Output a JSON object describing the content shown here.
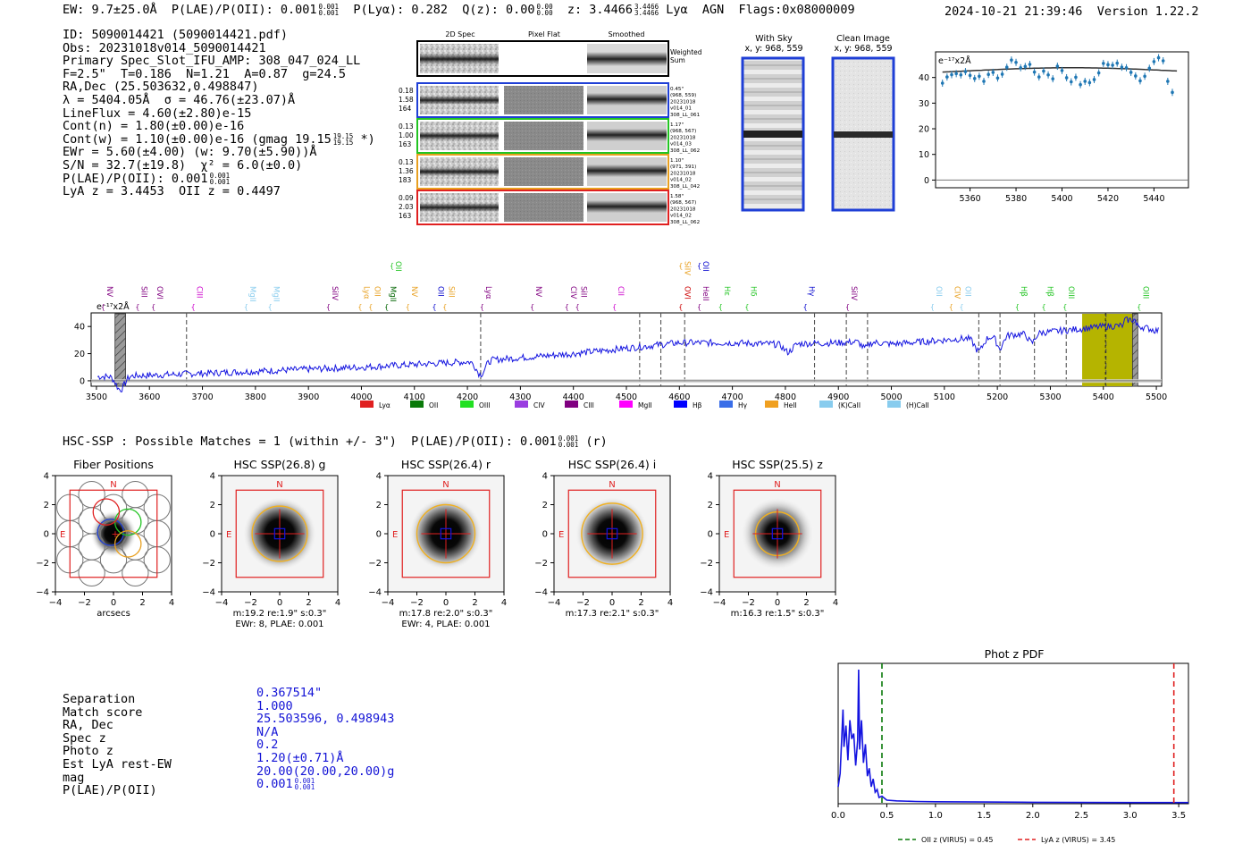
{
  "header": {
    "left": "EW: 9.7±25.0Å  P(LAE)/P(OII): 0.001",
    "plae_frac": [
      "0.001",
      "0.001"
    ],
    "mid": "P(Lyα): 0.282  Q(z): 0.00",
    "qz_frac": [
      "0.00",
      "0.00"
    ],
    "z": "z: 3.4466",
    "z_frac": [
      "3.4466",
      "3.4466"
    ],
    "tail": "Lyα  AGN  Flags:0x08000009",
    "timestamp": "2024-10-21 21:39:46",
    "version": "Version 1.22.2"
  },
  "info": {
    "lines": [
      "ID: 5090014421 (5090014421.pdf)",
      "Obs: 20231018v014_5090014421",
      "Primary Spec_Slot_IFU_AMP: 308_047_024_LL",
      "F=2.5\"  T=0.186  N=1.21  A=0.87  g=24.5",
      "RA,Dec (25.503632,0.498847)",
      "λ = 5404.05Å  σ = 46.76(±23.07)Å",
      "LineFlux = 4.60(±2.80)e-15",
      "Cont(n) = 1.80(±0.00)e-16"
    ],
    "contw": "Cont(w) = 1.10(±0.00)e-16 (gmag 19.15",
    "contw_frac": [
      "19.15",
      "19.15"
    ],
    "contw_tail": " *)",
    "ewr": "EWr = 5.60(±4.00) (w: 9.70(±5.90))Å",
    "sn": "S/N = 32.7(±19.8)  χ² = 6.0(±0.0)",
    "plae": "P(LAE)/P(OII): 0.001",
    "plae_frac": [
      "0.001",
      "0.001"
    ],
    "lyaz": "LyA z = 3.4453  OII z = 0.4497"
  },
  "spec2d": {
    "col_headers": [
      "2D Spec",
      "Pixel Flat",
      "Smoothed"
    ],
    "weighted_label": [
      "Weighted",
      "Sum"
    ],
    "rows": [
      {
        "left": [
          "0.18",
          "1.58",
          "164"
        ],
        "right": [
          "0.45\"",
          "(968, 559)",
          "20231018",
          "v014_01",
          "308_LL_061"
        ],
        "color": "#1f3fd6"
      },
      {
        "left": [
          "0.13",
          "1.00",
          "163"
        ],
        "right": [
          "1.17\"",
          "(968, 567)",
          "20231018",
          "v014_03",
          "308_LL_062"
        ],
        "color": "#22c422"
      },
      {
        "left": [
          "0.13",
          "1.36",
          "183"
        ],
        "right": [
          "1.10\"",
          "(971, 391)",
          "20231018",
          "v014_02",
          "308_LL_042"
        ],
        "color": "#e8a020"
      },
      {
        "left": [
          "0.09",
          "2.03",
          "163"
        ],
        "right": [
          "1.58\"",
          "(968, 567)",
          "20231018",
          "v014_02",
          "308_LL_062"
        ],
        "color": "#e02020"
      }
    ]
  },
  "cutouts": {
    "with_sky": [
      "With Sky",
      "x, y: 968, 559"
    ],
    "clean": [
      "Clean Image",
      "x, y: 968, 559"
    ]
  },
  "zoom_spectrum": {
    "ylabel": "e⁻¹⁷x2Å",
    "xlim": [
      5345,
      5455
    ],
    "ylim": [
      -3,
      50
    ],
    "xticks": [
      5360,
      5380,
      5400,
      5420,
      5440
    ],
    "yticks": [
      0,
      10,
      20,
      30,
      40
    ],
    "points": [
      [
        5348,
        37.8
      ],
      [
        5350,
        40.2
      ],
      [
        5352,
        41.1
      ],
      [
        5354,
        41.5
      ],
      [
        5356,
        41.0
      ],
      [
        5358,
        42.3
      ],
      [
        5360,
        40.8
      ],
      [
        5362,
        39.6
      ],
      [
        5364,
        40.5
      ],
      [
        5366,
        38.5
      ],
      [
        5368,
        41.2
      ],
      [
        5370,
        42.0
      ],
      [
        5372,
        39.8
      ],
      [
        5374,
        41.3
      ],
      [
        5376,
        44.0
      ],
      [
        5378,
        46.8
      ],
      [
        5380,
        45.9
      ],
      [
        5382,
        43.8
      ],
      [
        5384,
        44.3
      ],
      [
        5386,
        45.1
      ],
      [
        5388,
        42.1
      ],
      [
        5390,
        40.2
      ],
      [
        5392,
        42.5
      ],
      [
        5394,
        41.0
      ],
      [
        5396,
        39.5
      ],
      [
        5398,
        44.4
      ],
      [
        5400,
        42.7
      ],
      [
        5402,
        39.9
      ],
      [
        5404,
        38.3
      ],
      [
        5406,
        40.1
      ],
      [
        5408,
        37.2
      ],
      [
        5410,
        38.5
      ],
      [
        5412,
        38.0
      ],
      [
        5414,
        39.2
      ],
      [
        5416,
        41.8
      ],
      [
        5418,
        45.5
      ],
      [
        5420,
        45.0
      ],
      [
        5422,
        44.8
      ],
      [
        5424,
        45.6
      ],
      [
        5426,
        44.0
      ],
      [
        5428,
        43.8
      ],
      [
        5430,
        42.0
      ],
      [
        5432,
        40.6
      ],
      [
        5434,
        38.7
      ],
      [
        5436,
        40.5
      ],
      [
        5438,
        43.6
      ],
      [
        5440,
        46.2
      ],
      [
        5442,
        47.7
      ],
      [
        5444,
        46.5
      ],
      [
        5446,
        38.5
      ],
      [
        5448,
        34.2
      ]
    ],
    "fit_center": 5404,
    "fit_sigma": 46.76,
    "fit_peak": 43.8,
    "fit_base": 40.5
  },
  "full_spectrum": {
    "ylabel": "e⁻¹⁷x2Å",
    "xlim": [
      3490,
      5510
    ],
    "ylim": [
      -4,
      50
    ],
    "xticks": [
      3500,
      3600,
      3700,
      3800,
      3900,
      4000,
      4100,
      4200,
      4300,
      4400,
      4500,
      4600,
      4700,
      4800,
      4900,
      5000,
      5100,
      5200,
      5300,
      5400,
      5500
    ],
    "yticks": [
      0,
      20,
      40
    ],
    "trend": [
      [
        3500,
        3
      ],
      [
        3600,
        4
      ],
      [
        3800,
        7
      ],
      [
        4000,
        10
      ],
      [
        4100,
        12
      ],
      [
        4200,
        14
      ],
      [
        4300,
        17
      ],
      [
        4400,
        20
      ],
      [
        4500,
        24
      ],
      [
        4550,
        26
      ],
      [
        4600,
        28
      ],
      [
        4700,
        28
      ],
      [
        4780,
        27
      ],
      [
        4900,
        28
      ],
      [
        4950,
        29
      ],
      [
        5000,
        27
      ],
      [
        5100,
        30
      ],
      [
        5200,
        33
      ],
      [
        5300,
        36
      ],
      [
        5350,
        38
      ],
      [
        5400,
        40
      ],
      [
        5460,
        41
      ],
      [
        5500,
        37
      ]
    ],
    "dips": [
      [
        3545,
        -10,
        8
      ],
      [
        4225,
        -10,
        8
      ],
      [
        4805,
        -6,
        8
      ],
      [
        4950,
        -5,
        6
      ],
      [
        5165,
        -10,
        8
      ],
      [
        5205,
        -9,
        6
      ],
      [
        5265,
        -7,
        6
      ]
    ],
    "dashed_lines": [
      3670,
      4225,
      4525,
      4565,
      4610,
      4855,
      4915,
      4955,
      5165,
      5205,
      5270,
      5330,
      5405
    ],
    "hatched_bands": [
      [
        3535,
        3555
      ],
      [
        5455,
        5465
      ]
    ],
    "highlight_band": [
      5360,
      5455
    ],
    "line_labels": [
      {
        "label": "NV",
        "w": 3515,
        "color": "#800080",
        "tier": 1
      },
      {
        "label": "SiII",
        "w": 3580,
        "color": "#800080",
        "tier": 1
      },
      {
        "label": "OVI",
        "w": 3610,
        "color": "#800080",
        "tier": 1
      },
      {
        "label": "CIII",
        "w": 3685,
        "color": "#cc00cc",
        "tier": 1
      },
      {
        "label": "MgII",
        "w": 3785,
        "color": "#88ccee",
        "tier": 1
      },
      {
        "label": "MgII",
        "w": 3830,
        "color": "#88ccee",
        "tier": 1
      },
      {
        "label": "SiIV",
        "w": 3940,
        "color": "#800080",
        "tier": 1
      },
      {
        "label": "Lyα",
        "w": 4000,
        "color": "#e8a020",
        "tier": 1
      },
      {
        "label": "OII",
        "w": 4020,
        "color": "#e8a020",
        "tier": 1
      },
      {
        "label": "MgII",
        "w": 4050,
        "color": "#006400",
        "tier": 1
      },
      {
        "label": "OII",
        "w": 4060,
        "color": "#22c422",
        "tier": 0
      },
      {
        "label": "NV",
        "w": 4090,
        "color": "#e8a020",
        "tier": 1
      },
      {
        "label": "OII",
        "w": 4140,
        "color": "#0000cc",
        "tier": 1
      },
      {
        "label": "SiII",
        "w": 4160,
        "color": "#e8a020",
        "tier": 1
      },
      {
        "label": "Lyα",
        "w": 4230,
        "color": "#800080",
        "tier": 1
      },
      {
        "label": "NV",
        "w": 4325,
        "color": "#800080",
        "tier": 1
      },
      {
        "label": "CIV",
        "w": 4390,
        "color": "#800080",
        "tier": 1
      },
      {
        "label": "SiII",
        "w": 4410,
        "color": "#800080",
        "tier": 1
      },
      {
        "label": "CII",
        "w": 4480,
        "color": "#cc00cc",
        "tier": 1
      },
      {
        "label": "SiIV",
        "w": 4605,
        "color": "#e8a020",
        "tier": 0
      },
      {
        "label": "OII",
        "w": 4640,
        "color": "#0000cc",
        "tier": 0
      },
      {
        "label": "OVI",
        "w": 4605,
        "color": "#cc0000",
        "tier": 1
      },
      {
        "label": "HeII",
        "w": 4640,
        "color": "#800080",
        "tier": 1
      },
      {
        "label": "Hε",
        "w": 4680,
        "color": "#22c422",
        "tier": 1
      },
      {
        "label": "Hδ",
        "w": 4730,
        "color": "#22c422",
        "tier": 1
      },
      {
        "label": "Hγ",
        "w": 4840,
        "color": "#0000cc",
        "tier": 1
      },
      {
        "label": "SiIV",
        "w": 4920,
        "color": "#800080",
        "tier": 1
      },
      {
        "label": "OII",
        "w": 5080,
        "color": "#88ccee",
        "tier": 1
      },
      {
        "label": "CIV",
        "w": 5115,
        "color": "#e8a020",
        "tier": 1
      },
      {
        "label": "OII",
        "w": 5135,
        "color": "#88ccee",
        "tier": 1
      },
      {
        "label": "Hβ",
        "w": 5240,
        "color": "#22c422",
        "tier": 1
      },
      {
        "label": "Hβ",
        "w": 5290,
        "color": "#22c422",
        "tier": 1
      },
      {
        "label": "OIII",
        "w": 5330,
        "color": "#22c422",
        "tier": 1
      },
      {
        "label": "OIII",
        "w": 5470,
        "color": "#22c422",
        "tier": 1
      }
    ],
    "legend": [
      {
        "label": "Lyα",
        "color": "#e02020"
      },
      {
        "label": "OII",
        "color": "#0a7a0a"
      },
      {
        "label": "OIII",
        "color": "#22e022"
      },
      {
        "label": "CIV",
        "color": "#9a3de0"
      },
      {
        "label": "CIII",
        "color": "#800080"
      },
      {
        "label": "MgII",
        "color": "#ff00ff"
      },
      {
        "label": "Hβ",
        "color": "#0000ff"
      },
      {
        "label": "Hγ",
        "color": "#3a6ee8"
      },
      {
        "label": "HeII",
        "color": "#f0a020"
      },
      {
        "label": "(K)CaII",
        "color": "#88ccee"
      },
      {
        "label": "(H)CaII",
        "color": "#88ccee"
      }
    ]
  },
  "hsc": {
    "title": "HSC-SSP : Possible Matches = 1 (within +/- 3\")  P(LAE)/P(OII): 0.001",
    "title_frac": [
      "0.001",
      "0.001"
    ],
    "title_tail": " (r)",
    "panels": [
      {
        "title": "Fiber Positions",
        "caption": [
          "arcsecs"
        ],
        "type": "fiber"
      },
      {
        "title": "HSC SSP(26.8) g",
        "caption": [
          "m:19.2  re:1.9\"  s:0.3\"",
          "EWr: 8, PLAE: 0.001"
        ],
        "type": "img",
        "ring": 1.9
      },
      {
        "title": "HSC SSP(26.4) r",
        "caption": [
          "m:17.8  re:2.0\"  s:0.3\"",
          "EWr: 4, PLAE: 0.001"
        ],
        "type": "img",
        "ring": 2.0
      },
      {
        "title": "HSC SSP(26.4) i",
        "caption": [
          "m:17.3  re:2.1\"  s:0.3\""
        ],
        "type": "img",
        "ring": 2.1
      },
      {
        "title": "HSC SSP(25.5) z",
        "caption": [
          "m:16.3  re:1.5\"  s:0.3\""
        ],
        "type": "img",
        "ring": 1.5
      }
    ],
    "ticks": [
      "−4",
      "−2",
      "0",
      "2",
      "4"
    ],
    "north": "N",
    "east": "E"
  },
  "match": {
    "labels": [
      "Separation",
      "Match score",
      "RA, Dec",
      "Spec z",
      "Photo z",
      "Est LyA rest-EW",
      "mag",
      "P(LAE)/P(OII)"
    ],
    "values": [
      "0.367514\"",
      "1.000",
      "25.503596, 0.498943",
      "N/A",
      "0.2",
      "1.20(±0.71)Å",
      "20.00(20.00,20.00)g",
      "0.001"
    ],
    "plae_frac": [
      "0.001",
      "0.001"
    ]
  },
  "photz": {
    "title": "Phot z PDF",
    "xlim": [
      0,
      3.6
    ],
    "xticks": [
      "0.0",
      "0.5",
      "1.0",
      "1.5",
      "2.0",
      "2.5",
      "3.0",
      "3.5"
    ],
    "oii_z": 0.45,
    "lya_z": 3.45,
    "legend_oii": "OII z (VIRUS) = 0.45",
    "legend_lya": "LyA z (VIRUS) = 3.45",
    "pdf": [
      [
        0.0,
        0.12
      ],
      [
        0.02,
        0.22
      ],
      [
        0.04,
        0.55
      ],
      [
        0.05,
        0.7
      ],
      [
        0.06,
        0.42
      ],
      [
        0.08,
        0.58
      ],
      [
        0.1,
        0.32
      ],
      [
        0.12,
        0.62
      ],
      [
        0.14,
        0.48
      ],
      [
        0.16,
        0.52
      ],
      [
        0.18,
        0.28
      ],
      [
        0.2,
        0.47
      ],
      [
        0.21,
        1.0
      ],
      [
        0.22,
        0.4
      ],
      [
        0.24,
        0.62
      ],
      [
        0.26,
        0.3
      ],
      [
        0.28,
        0.44
      ],
      [
        0.3,
        0.2
      ],
      [
        0.32,
        0.26
      ],
      [
        0.34,
        0.12
      ],
      [
        0.36,
        0.18
      ],
      [
        0.38,
        0.08
      ],
      [
        0.4,
        0.1
      ],
      [
        0.42,
        0.04
      ],
      [
        0.45,
        0.05
      ],
      [
        0.5,
        0.02
      ],
      [
        0.6,
        0.015
      ],
      [
        0.8,
        0.01
      ],
      [
        1.0,
        0.008
      ],
      [
        1.5,
        0.006
      ],
      [
        2.0,
        0.004
      ],
      [
        2.5,
        0.003
      ],
      [
        3.0,
        0.002
      ],
      [
        3.6,
        0.002
      ]
    ]
  }
}
